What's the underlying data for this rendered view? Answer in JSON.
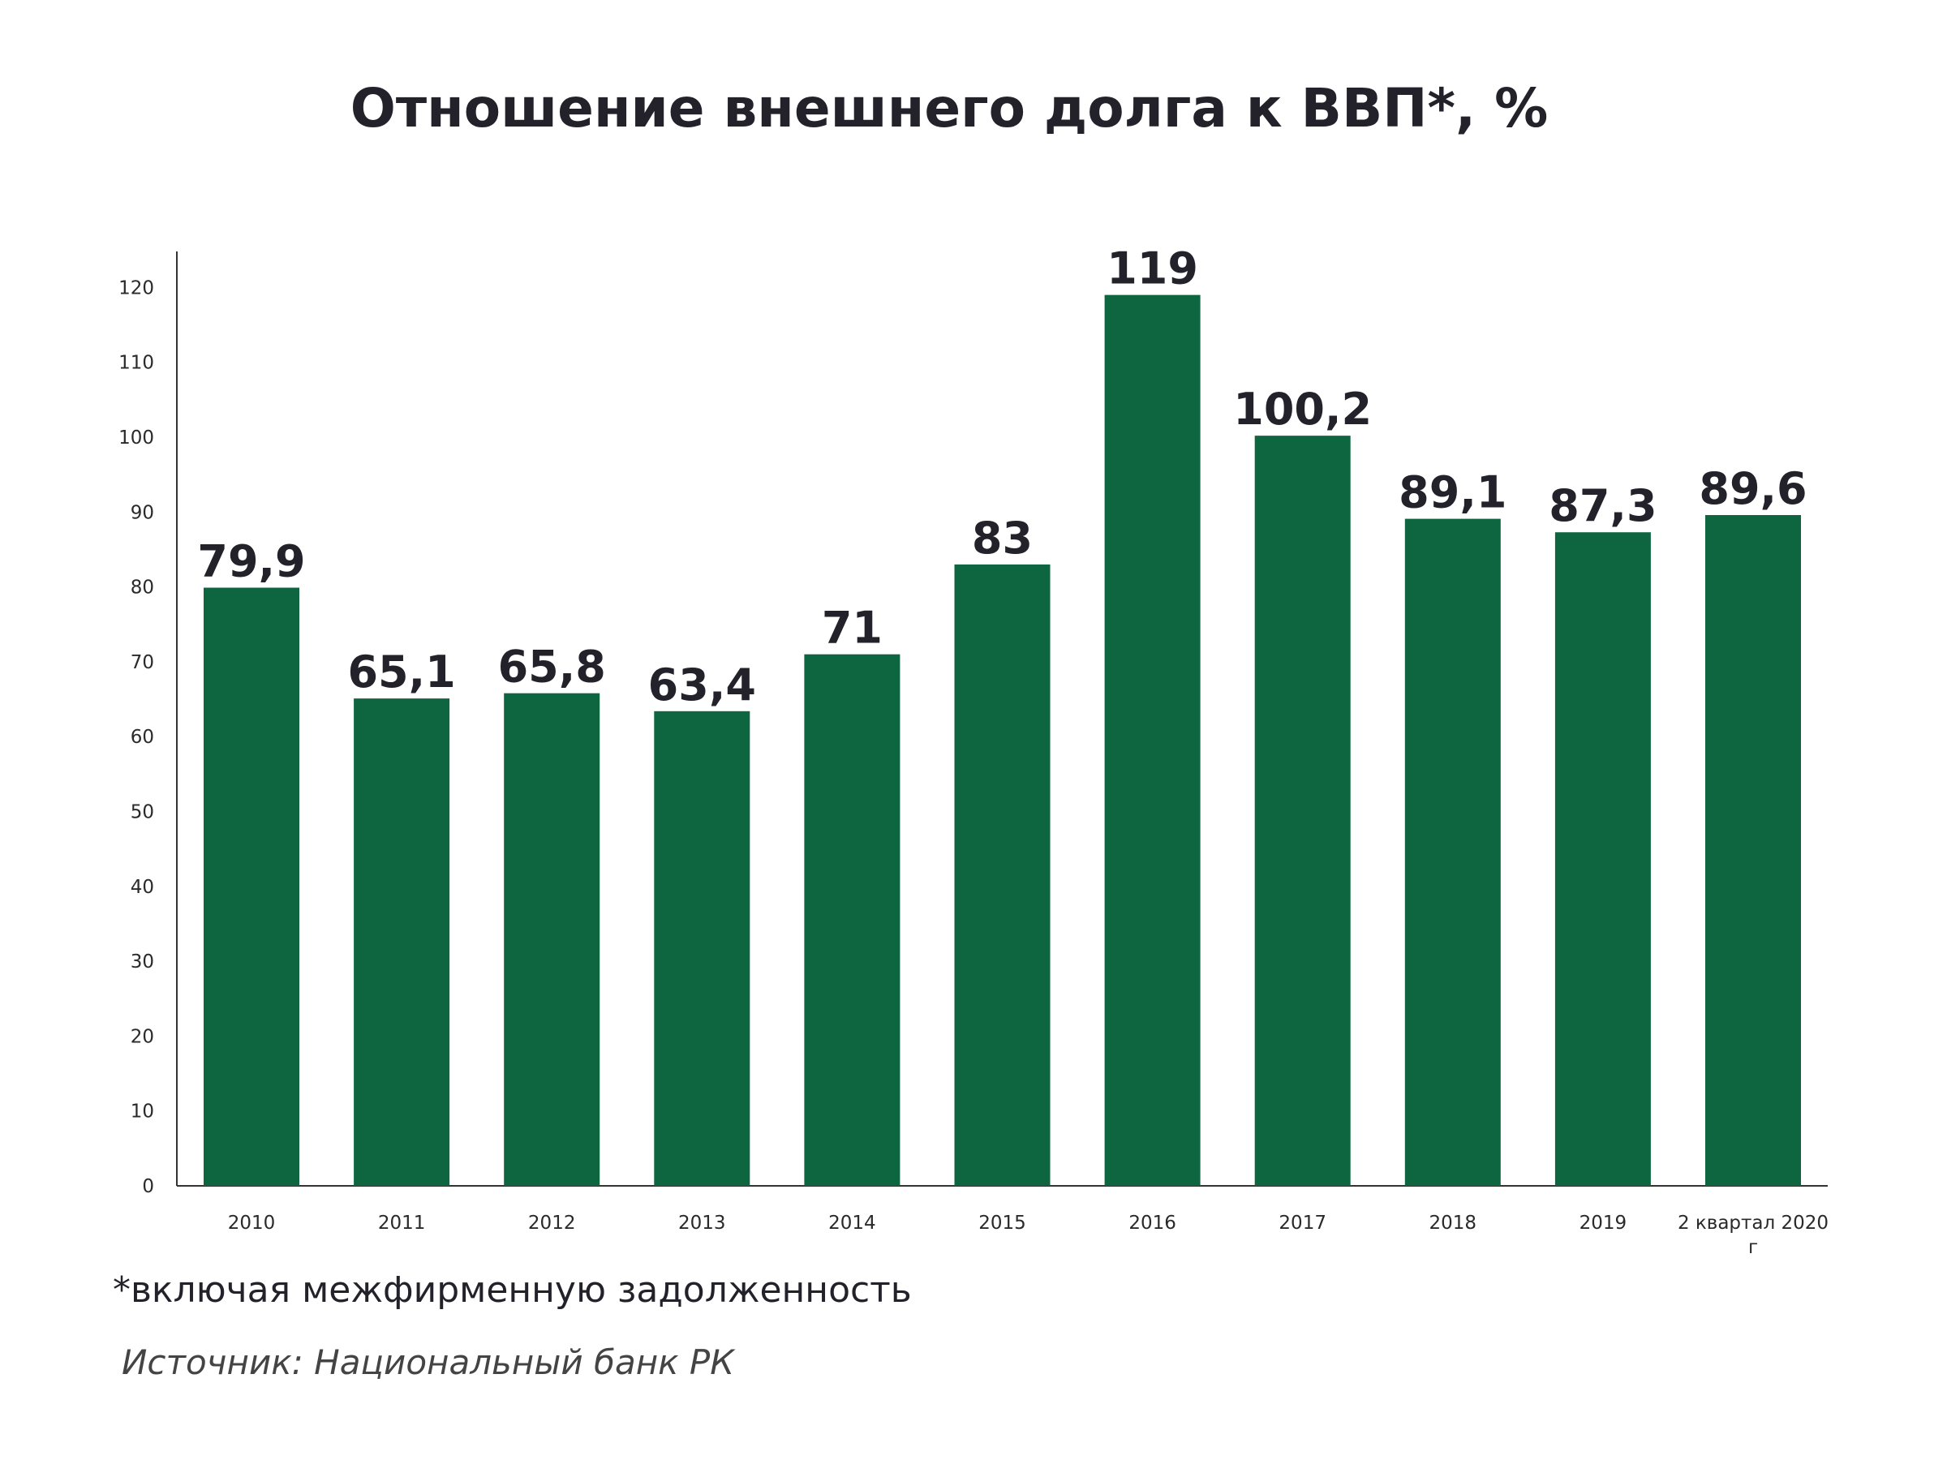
{
  "chart_data": {
    "type": "bar",
    "title": "Отношение внешнего долга к ВВП*, %",
    "categories": [
      "2010",
      "2011",
      "2012",
      "2013",
      "2014",
      "2015",
      "2016",
      "2017",
      "2018",
      "2019",
      "2 квартал 2020 г"
    ],
    "values": [
      79.9,
      65.1,
      65.8,
      63.4,
      71,
      83,
      119,
      100.2,
      89.1,
      87.3,
      89.6
    ],
    "data_labels": [
      "79,9",
      "65,1",
      "65,8",
      "63,4",
      "71",
      "83",
      "119",
      "100,2",
      "89,1",
      "87,3",
      "89,6"
    ],
    "xlabel": "",
    "ylabel": "",
    "ylim": [
      0,
      125
    ],
    "yticks": [
      0,
      10,
      20,
      30,
      40,
      50,
      60,
      70,
      80,
      90,
      100,
      110,
      120
    ],
    "grid": false,
    "bar_color": "#0e6641"
  },
  "footnote": "*включая межфирменную задолженность",
  "source": "Источник: Национальный банк РК"
}
